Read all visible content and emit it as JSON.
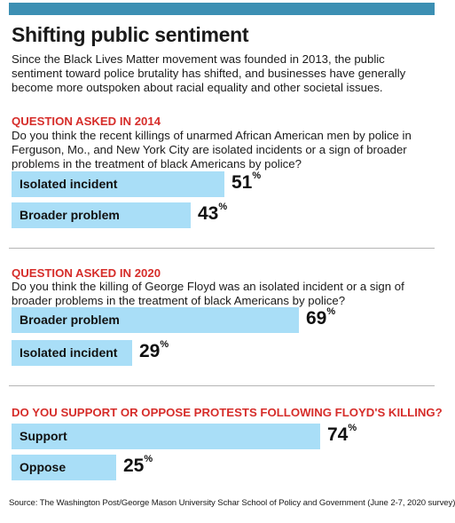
{
  "header": {
    "title": "Shifting public sentiment",
    "intro": "Since the Black Lives Matter movement was founded in 2013, the public sentiment toward police brutality has shifted, and businesses have generally become more outspoken about racial equality and other societal issues."
  },
  "colors": {
    "bar": "#a9def7",
    "accent": "#d62d2a",
    "topbar": "#3c8fb3"
  },
  "chart_data": [
    {
      "type": "bar",
      "title": "QUESTION ASKED IN 2014",
      "question": "Do you think the recent killings of unarmed African American men by police in Ferguson, Mo., and New York City are isolated incidents or a sign of broader problems in the treatment of black Americans by police?",
      "categories": [
        "Isolated incident",
        "Broader problem"
      ],
      "values": [
        51,
        43
      ],
      "unit": "%",
      "xlim": [
        0,
        100
      ]
    },
    {
      "type": "bar",
      "title": "QUESTION ASKED IN 2020",
      "question": "Do you think the killing of George Floyd was an isolated incident or a sign of broader problems in the treatment of black Americans by police?",
      "categories": [
        "Broader problem",
        "Isolated incident"
      ],
      "values": [
        69,
        29
      ],
      "unit": "%",
      "xlim": [
        0,
        100
      ]
    },
    {
      "type": "bar",
      "title": "DO YOU SUPPORT OR OPPOSE PROTESTS FOLLOWING FLOYD'S KILLING?",
      "question": "",
      "categories": [
        "Support",
        "Oppose"
      ],
      "values": [
        74,
        25
      ],
      "unit": "%",
      "xlim": [
        0,
        100
      ]
    }
  ],
  "source": "Source: The Washington Post/George Mason University Schar School of Policy and Government (June 2-7, 2020 survey)"
}
